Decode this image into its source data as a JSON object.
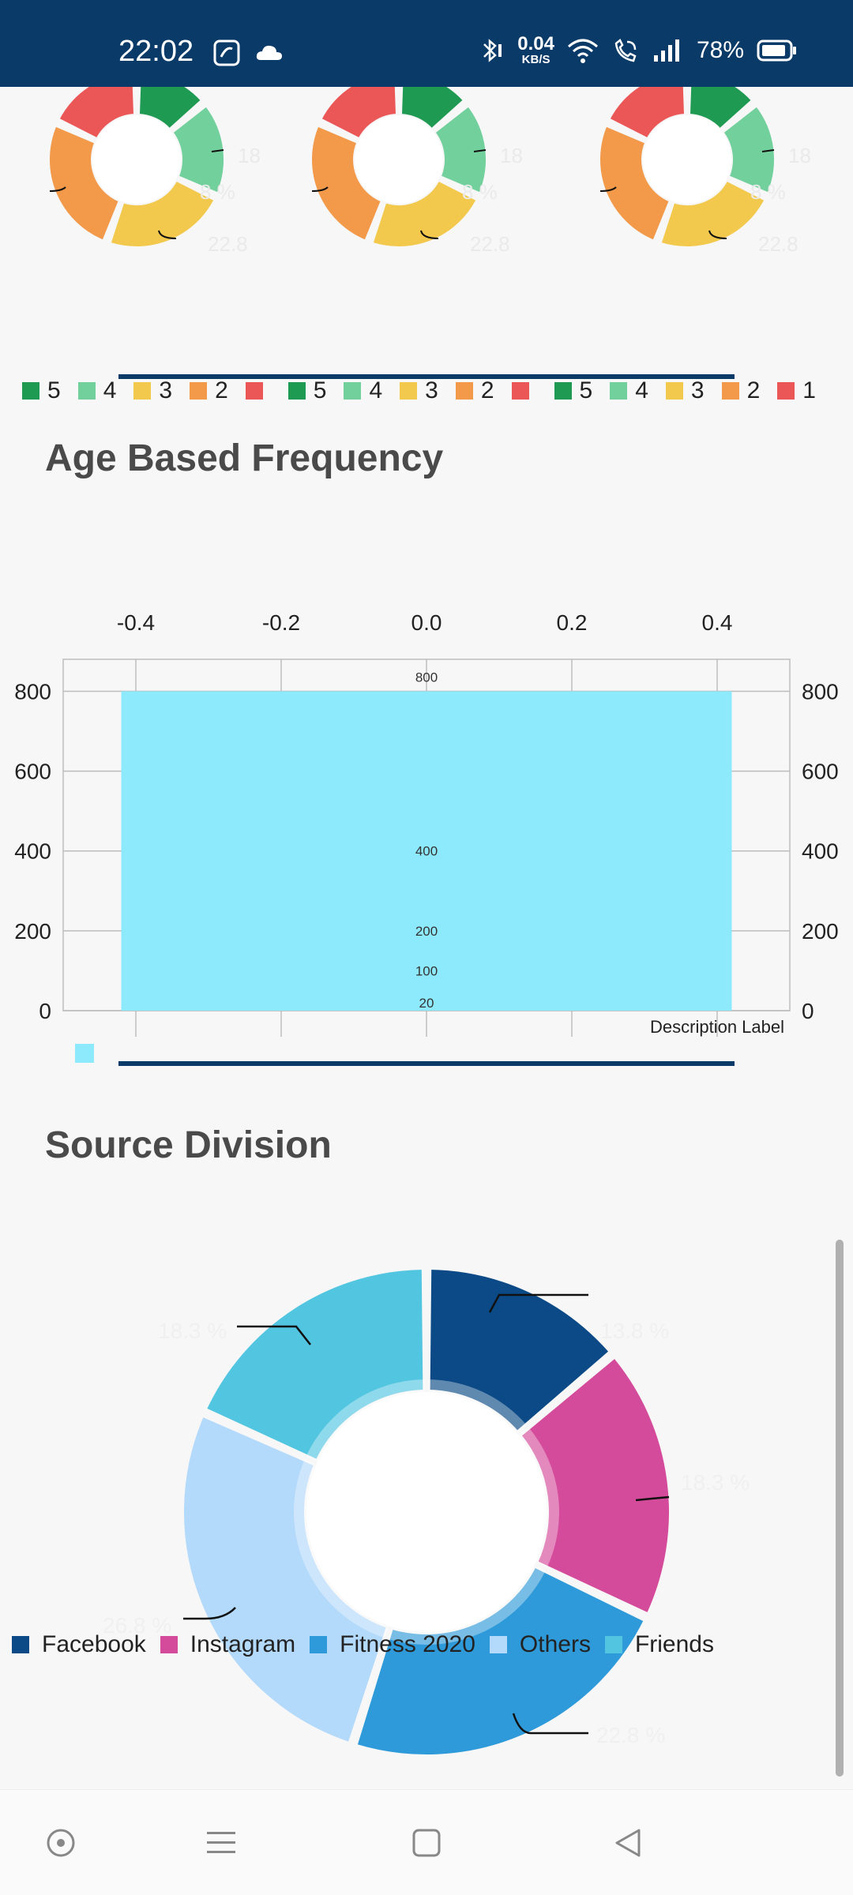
{
  "status_bar": {
    "time": "22:02",
    "net_speed_value": "0.04",
    "net_speed_unit": "KB/S",
    "battery": "78%",
    "icons": [
      "saavn-icon",
      "cloud-icon",
      "bluetooth-icon",
      "wifi-icon",
      "wifi-call-icon",
      "signal-icon",
      "battery-icon"
    ]
  },
  "rating_legend": [
    {
      "label": "5",
      "color": "#1f9a52"
    },
    {
      "label": "4",
      "color": "#72d09c"
    },
    {
      "label": "3",
      "color": "#f2c94c"
    },
    {
      "label": "2",
      "color": "#f2994a"
    },
    {
      "label": "",
      "color": "#eb5757"
    },
    {
      "label": "5",
      "color": "#1f9a52"
    },
    {
      "label": "4",
      "color": "#72d09c"
    },
    {
      "label": "3",
      "color": "#f2c94c"
    },
    {
      "label": "2",
      "color": "#f2994a"
    },
    {
      "label": "",
      "color": "#eb5757"
    },
    {
      "label": "5",
      "color": "#1f9a52"
    },
    {
      "label": "4",
      "color": "#72d09c"
    },
    {
      "label": "3",
      "color": "#f2c94c"
    },
    {
      "label": "2",
      "color": "#f2994a"
    },
    {
      "label": "1",
      "color": "#eb5757"
    }
  ],
  "rating_chart_labels": [
    "18",
    "8 %",
    "22.8"
  ],
  "age_section": {
    "title": "Age Based Frequency"
  },
  "source_section": {
    "title": "Source Division"
  },
  "chart_data": [
    {
      "type": "bar",
      "title": "Age Based Frequency",
      "x_ticks": [
        "-0.4",
        "-0.2",
        "0.0",
        "0.2",
        "0.4"
      ],
      "xlim": [
        -0.5,
        0.5
      ],
      "y_ticks": [
        "800",
        "600",
        "400",
        "200",
        "0"
      ],
      "ylim": [
        0,
        880
      ],
      "values": [
        800
      ],
      "value_labels": [
        "800",
        "400",
        "200",
        "100",
        "20"
      ],
      "value_label_levels": [
        800,
        400,
        200,
        100,
        20
      ],
      "bar_color": "#8de9fc",
      "description_label": "Description Label",
      "grid": true
    },
    {
      "type": "pie",
      "title": "Source Division",
      "labels": [
        "Facebook",
        "Instagram",
        "Fitness 2020",
        "Others",
        "Friends"
      ],
      "values": [
        13.8,
        18.3,
        22.8,
        26.8,
        18.3
      ],
      "value_labels": [
        "13.8 %",
        "18.3 %",
        "22.8 %",
        "26.8 %",
        "18.3 %"
      ],
      "colors": [
        "#0b4a86",
        "#d54b9b",
        "#2e9ad9",
        "#b3d9fb",
        "#52c5e0"
      ],
      "legend": "bottom"
    }
  ],
  "nav_bar": {
    "icons": [
      "assistant-icon",
      "menu-icon",
      "home-icon",
      "back-icon"
    ]
  }
}
